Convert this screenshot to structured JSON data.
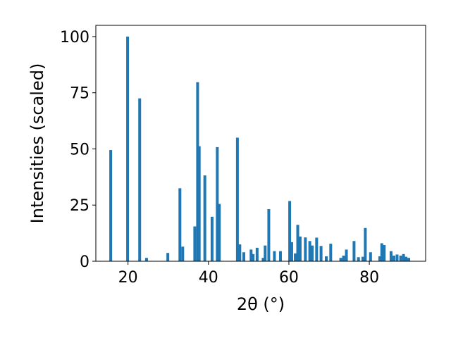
{
  "chart_data": {
    "type": "bar",
    "title": "",
    "xlabel": "2θ (°)",
    "ylabel": "Intensities (scaled)",
    "xlim": [
      12,
      94
    ],
    "ylim": [
      0,
      105
    ],
    "xticks": [
      20,
      40,
      60,
      80
    ],
    "yticks": [
      0,
      25,
      50,
      75,
      100
    ],
    "xtick_labels": [
      "20",
      "40",
      "60",
      "80"
    ],
    "ytick_labels": [
      "0",
      "25",
      "50",
      "75",
      "100"
    ],
    "grid": false,
    "legend": "none",
    "bar_color": "#1f77b4",
    "bar_width": 0.7,
    "x": [
      15.7,
      19.9,
      22.9,
      24.6,
      29.9,
      32.9,
      33.6,
      36.6,
      37.3,
      37.7,
      39.1,
      40.9,
      42.2,
      42.7,
      47.2,
      47.8,
      48.8,
      50.6,
      51.1,
      52.1,
      53.6,
      54.1,
      55.0,
      56.4,
      57.9,
      60.2,
      60.7,
      61.6,
      62.2,
      62.8,
      64.1,
      65.2,
      65.8,
      66.9,
      68.0,
      69.3,
      70.4,
      72.9,
      73.6,
      74.3,
      76.2,
      77.3,
      78.4,
      79.0,
      80.3,
      82.6,
      83.1,
      83.7,
      85.4,
      86.1,
      86.9,
      87.8,
      88.5,
      89.1,
      89.8
    ],
    "values": [
      49.5,
      100,
      72.5,
      1.5,
      3.7,
      32.5,
      6.5,
      15.5,
      79.7,
      51.2,
      38.2,
      19.8,
      50.8,
      25.5,
      55.0,
      7.5,
      4.0,
      5.2,
      3.2,
      6.0,
      1.5,
      7.0,
      23.2,
      4.5,
      4.5,
      26.8,
      8.5,
      3.5,
      16.2,
      11.0,
      10.6,
      9.0,
      7.0,
      10.5,
      6.8,
      2.2,
      7.8,
      1.5,
      2.5,
      5.2,
      9.0,
      1.8,
      2.0,
      14.8,
      4.0,
      2.2,
      8.0,
      7.2,
      4.5,
      2.5,
      3.0,
      2.5,
      3.2,
      2.0,
      1.5
    ]
  }
}
